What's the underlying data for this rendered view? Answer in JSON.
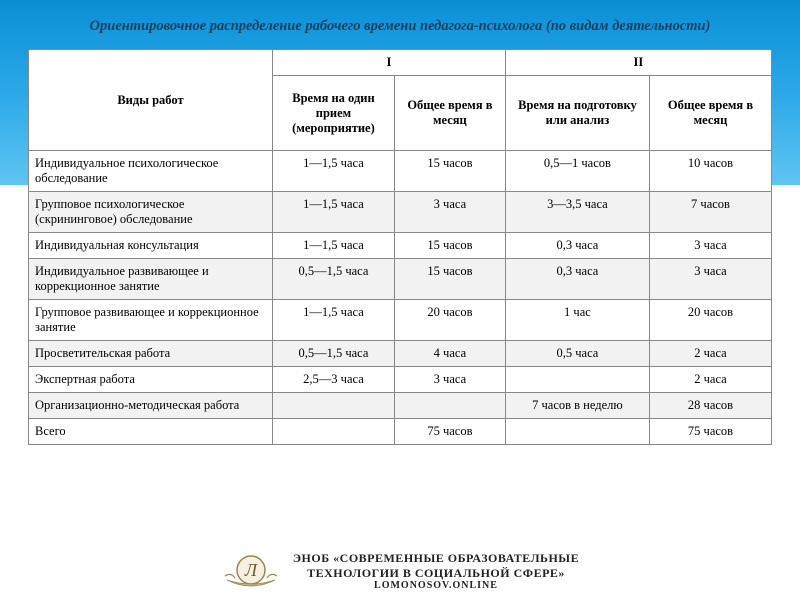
{
  "title": "Ориентировочное распределение рабочего времени педагога-психолога (по видам деятельности)",
  "header": {
    "types": "Виды работ",
    "group1": "I",
    "group2": "II",
    "col1": "Время на один прием (мероприятие)",
    "col2": "Общее время в месяц",
    "col3": "Время на подготовку или анализ",
    "col4": "Общее время в месяц"
  },
  "rows": [
    {
      "name": "Индивидуальное психологическое обследование",
      "c1": "1—1,5 часа",
      "c2": "15 часов",
      "c3": "0,5—1 часов",
      "c4": "10 часов"
    },
    {
      "name": "Групповое психологическое (скрининговое) обследование",
      "c1": "1—1,5 часа",
      "c2": "3 часа",
      "c3": "3—3,5 часа",
      "c4": "7 часов"
    },
    {
      "name": "Индивидуальная консультация",
      "c1": "1—1,5 часа",
      "c2": "15 часов",
      "c3": "0,3 часа",
      "c4": "3 часа"
    },
    {
      "name": "Индивидуальное развивающее и коррекционное занятие",
      "c1": "0,5—1,5 часа",
      "c2": "15 часов",
      "c3": "0,3 часа",
      "c4": "3 часа"
    },
    {
      "name": "Групповое развивающее и коррекционное занятие",
      "c1": "1—1,5 часа",
      "c2": "20 часов",
      "c3": "1 час",
      "c4": "20 часов"
    },
    {
      "name": "Просветительская работа",
      "c1": "0,5—1,5 часа",
      "c2": "4 часа",
      "c3": "0,5 часа",
      "c4": "2 часа"
    },
    {
      "name": "Экспертная работа",
      "c1": "2,5—3 часа",
      "c2": "3 часа",
      "c3": "",
      "c4": "2 часа"
    },
    {
      "name": "Организационно-методическая работа",
      "c1": "",
      "c2": "",
      "c3": "7 часов в неделю",
      "c4": "28 часов"
    },
    {
      "name": "Всего",
      "c1": "",
      "c2": "75 часов",
      "c3": "",
      "c4": "75 часов"
    }
  ],
  "footer": {
    "line1": "ЭНОБ «СОВРЕМЕННЫЕ ОБРАЗОВАТЕЛЬНЫЕ",
    "line2": "ТЕХНОЛОГИИ В СОЦИАЛЬНОЙ СФЕРЕ»",
    "sub": "LOMONOSOV.ONLINE",
    "logo_text": "ЛОМОНОСОВ"
  },
  "style": {
    "header_gradient": [
      "#0a8fd6",
      "#2ba8e8",
      "#5fc5f2"
    ],
    "row_alt_bg": "#f2f2f2",
    "border_color": "#888888",
    "title_color": "#1a3d5c",
    "col_widths": {
      "types": 220,
      "c1": 110,
      "c2": 100,
      "c3": 130,
      "c4": 110
    },
    "font_size_body": 12.5,
    "font_size_title": 14.5
  }
}
